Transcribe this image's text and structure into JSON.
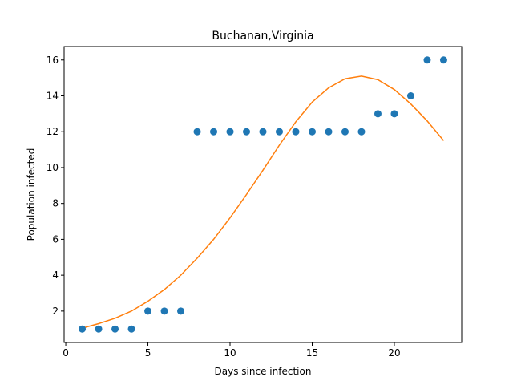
{
  "chart_data": {
    "type": "scatter",
    "title": "Buchanan,Virginia",
    "xlabel": "Days since infection",
    "ylabel": "Population infected",
    "xlim": [
      -0.1,
      24.1
    ],
    "ylim": [
      0.25,
      16.75
    ],
    "xticks": [
      0,
      5,
      10,
      15,
      20
    ],
    "yticks": [
      2,
      4,
      6,
      8,
      10,
      12,
      14,
      16
    ],
    "grid": false,
    "series": [
      {
        "kind": "scatter",
        "color": "#1f77b4",
        "x": [
          1,
          2,
          3,
          4,
          5,
          6,
          7,
          8,
          9,
          10,
          11,
          12,
          13,
          14,
          15,
          16,
          17,
          18,
          19,
          20,
          21,
          22,
          23
        ],
        "y": [
          1,
          1,
          1,
          1,
          2,
          2,
          2,
          12,
          12,
          12,
          12,
          12,
          12,
          12,
          12,
          12,
          12,
          12,
          13,
          13,
          14,
          16,
          16
        ]
      },
      {
        "kind": "line",
        "color": "#ff7f0e",
        "x": [
          1,
          2,
          3,
          4,
          5,
          6,
          7,
          8,
          9,
          10,
          11,
          12,
          13,
          14,
          15,
          16,
          17,
          18,
          19,
          20,
          21,
          22,
          23
        ],
        "y": [
          1.05,
          1.3,
          1.6,
          2.0,
          2.55,
          3.2,
          4.0,
          4.95,
          6.0,
          7.2,
          8.5,
          9.85,
          11.25,
          12.55,
          13.65,
          14.45,
          14.95,
          15.1,
          14.9,
          14.35,
          13.55,
          12.6,
          11.5
        ]
      }
    ]
  }
}
